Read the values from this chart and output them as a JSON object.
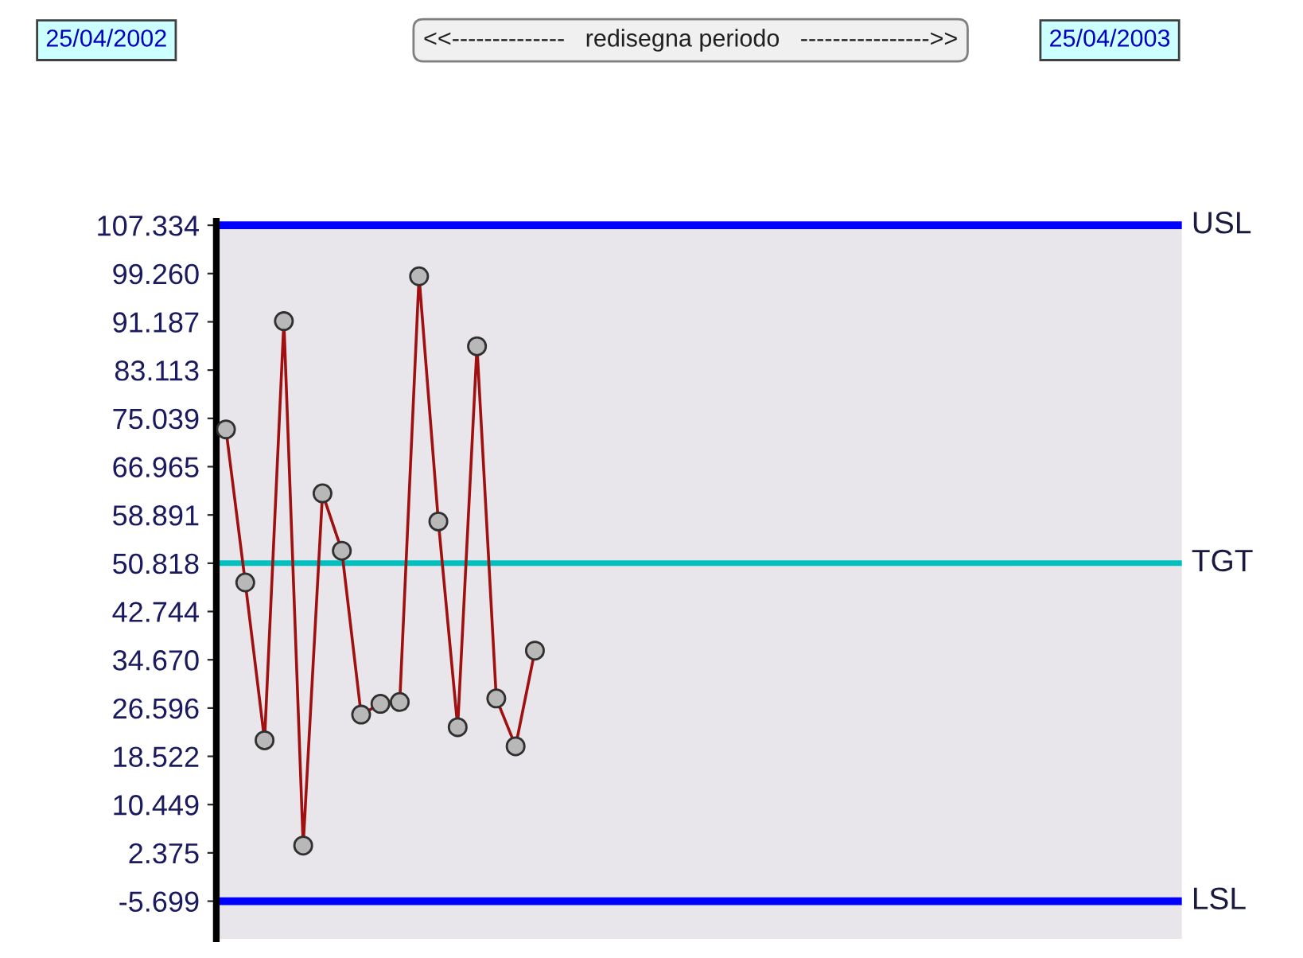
{
  "chart_data": {
    "type": "line",
    "annotations": [
      "25/04/2002",
      "<<--------------   redisegna periodo   ---------------->>",
      "25/04/2003"
    ],
    "categories": [
      null,
      null,
      null,
      null,
      null,
      null,
      null,
      null,
      null,
      null,
      null,
      null,
      null,
      null,
      null,
      null,
      null,
      null,
      null,
      null,
      null,
      null,
      null,
      null,
      null,
      null,
      null,
      null,
      null,
      null,
      null,
      null,
      null,
      null,
      null,
      null,
      null,
      null,
      null,
      null,
      null,
      null,
      null,
      null,
      null,
      null,
      null,
      null,
      null,
      null
    ],
    "series": [
      {
        "color": "#a01010",
        "values": [
          73.2,
          47.6,
          21.2,
          91.3,
          3.6,
          62.5,
          52.9,
          25.5,
          27.3,
          27.6,
          98.8,
          57.8,
          23.4,
          87.1,
          28.2,
          20.2,
          36.2,
          null,
          null,
          null,
          null,
          null,
          null,
          null,
          null,
          null,
          null,
          null,
          null,
          null,
          null,
          null,
          null,
          null,
          null,
          null,
          null,
          null,
          null,
          null,
          null,
          null,
          null,
          null,
          null,
          null,
          null,
          null,
          null,
          null
        ]
      }
    ],
    "marker": "circle",
    "line_style": "solid",
    "grid": false,
    "legend": false,
    "tick_labels": "y",
    "ylim": [
      -12,
      108
    ],
    "yticks": [
      {
        "value": 107.334,
        "label": "107.334"
      },
      {
        "value": 99.26,
        "label": "99.260"
      },
      {
        "value": 91.187,
        "label": "91.187"
      },
      {
        "value": 83.113,
        "label": "83.113"
      },
      {
        "value": 75.039,
        "label": "75.039"
      },
      {
        "value": 66.965,
        "label": "66.965"
      },
      {
        "value": 58.891,
        "label": "58.891"
      },
      {
        "value": 50.818,
        "label": "50.818"
      },
      {
        "value": 42.744,
        "label": "42.744"
      },
      {
        "value": 34.67,
        "label": "34.670"
      },
      {
        "value": 26.596,
        "label": "26.596"
      },
      {
        "value": 18.522,
        "label": "18.522"
      },
      {
        "value": 10.449,
        "label": "10.449"
      },
      {
        "value": 2.375,
        "label": "2.375"
      },
      {
        "value": -5.699,
        "label": "-5.699"
      }
    ],
    "ref_lines": [
      {
        "axis": "y",
        "value": 107.334,
        "label": "USL",
        "color": "#0000ff"
      },
      {
        "axis": "y",
        "value": 50.818,
        "label": "TGT",
        "color": "#00c0c0"
      },
      {
        "axis": "y",
        "value": -5.699,
        "label": "LSL",
        "color": "#0000ff"
      }
    ]
  }
}
